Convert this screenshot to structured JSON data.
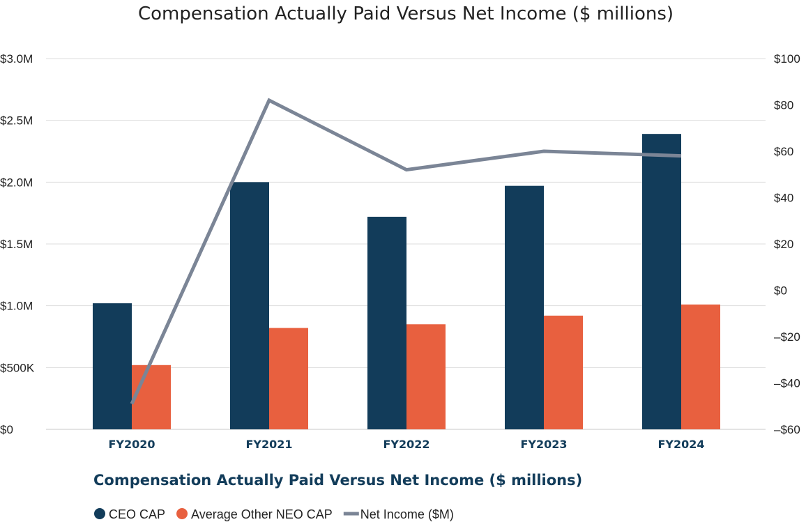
{
  "chart_data": {
    "type": "bar",
    "title": "Compensation Actually Paid Versus Net Income ($ millions)",
    "subtitle": "Compensation Actually Paid Versus Net Income ($ millions)",
    "categories": [
      "FY2020",
      "FY2021",
      "FY2022",
      "FY2023",
      "FY2024"
    ],
    "series": [
      {
        "name": "CEO CAP",
        "type": "bar",
        "axis": "left",
        "values": [
          1.02,
          2.0,
          1.72,
          1.97,
          2.39
        ],
        "color": "#123c5a"
      },
      {
        "name": "Average Other NEO CAP",
        "type": "bar",
        "axis": "left",
        "values": [
          0.52,
          0.82,
          0.85,
          0.92,
          1.01
        ],
        "color": "#e8603f"
      },
      {
        "name": "Net Income ($M)",
        "type": "line",
        "axis": "right",
        "values": [
          -49,
          82,
          52,
          60,
          58
        ],
        "color": "#7b8596"
      }
    ],
    "y_left": {
      "ticks": [
        0,
        0.5,
        1.0,
        1.5,
        2.0,
        2.5,
        3.0
      ],
      "tick_labels": [
        "$0",
        "$500K",
        "$1.0M",
        "$1.5M",
        "$2.0M",
        "$2.5M",
        "$3.0M"
      ],
      "ylim": [
        0,
        3.0
      ]
    },
    "y_right": {
      "ticks": [
        -60,
        -40,
        -20,
        0,
        20,
        40,
        60,
        80,
        100
      ],
      "tick_labels": [
        "–$60",
        "–$40",
        "–$20",
        "$0",
        "$20",
        "$40",
        "$60",
        "$80",
        "$100"
      ],
      "ylim": [
        -60,
        100
      ]
    },
    "grid": true,
    "legend_position": "bottom-left",
    "legend": [
      "CEO CAP",
      "Average Other NEO CAP",
      "Net Income ($M)"
    ]
  }
}
